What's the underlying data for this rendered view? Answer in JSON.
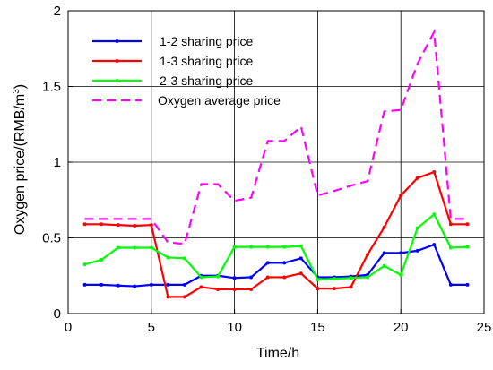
{
  "chart_data": {
    "type": "line",
    "xlabel": "Time/h",
    "ylabel_main": "Oxygen price/(RMB/m",
    "ylabel_sup": "3",
    "ylabel_close": ")",
    "xlim": [
      0,
      25
    ],
    "ylim": [
      0,
      2
    ],
    "x_ticks": [
      0,
      5,
      10,
      15,
      20,
      25
    ],
    "y_ticks": [
      0,
      0.5,
      1,
      1.5,
      2
    ],
    "x_tick_labels": [
      "0",
      "5",
      "10",
      "15",
      "20",
      "25"
    ],
    "y_tick_labels": [
      "0",
      "0.5",
      "1",
      "1.5",
      "2"
    ],
    "grid": true,
    "legend_position": "top-left",
    "x": [
      1,
      2,
      3,
      4,
      5,
      6,
      7,
      8,
      9,
      10,
      11,
      12,
      13,
      14,
      15,
      16,
      17,
      18,
      19,
      20,
      21,
      22,
      23,
      24
    ],
    "series": [
      {
        "name": "1-2 sharing price",
        "color": "#0000ff",
        "dash": "solid",
        "markers": true,
        "values": [
          0.19,
          0.19,
          0.185,
          0.18,
          0.19,
          0.19,
          0.19,
          0.25,
          0.25,
          0.235,
          0.24,
          0.335,
          0.335,
          0.365,
          0.24,
          0.24,
          0.245,
          0.255,
          0.4,
          0.4,
          0.415,
          0.455,
          0.19,
          0.19
        ]
      },
      {
        "name": "1-3 sharing price",
        "color": "#ff0000",
        "dash": "solid",
        "markers": true,
        "values": [
          0.59,
          0.59,
          0.585,
          0.58,
          0.585,
          0.11,
          0.11,
          0.175,
          0.16,
          0.16,
          0.16,
          0.24,
          0.24,
          0.265,
          0.165,
          0.165,
          0.175,
          0.39,
          0.57,
          0.78,
          0.895,
          0.935,
          0.59,
          0.59
        ]
      },
      {
        "name": "2-3 sharing price",
        "color": "#00ff00",
        "dash": "solid",
        "markers": true,
        "values": [
          0.325,
          0.355,
          0.435,
          0.435,
          0.435,
          0.37,
          0.365,
          0.24,
          0.245,
          0.44,
          0.44,
          0.44,
          0.44,
          0.445,
          0.225,
          0.23,
          0.235,
          0.24,
          0.315,
          0.255,
          0.565,
          0.655,
          0.435,
          0.44
        ]
      },
      {
        "name": "Oxygen average price",
        "color": "#ff00ff",
        "dash": "dashed",
        "markers": false,
        "values": [
          0.625,
          0.625,
          0.625,
          0.625,
          0.625,
          0.47,
          0.46,
          0.855,
          0.855,
          0.745,
          0.765,
          1.14,
          1.14,
          1.235,
          0.78,
          0.81,
          0.845,
          0.875,
          1.335,
          1.345,
          1.65,
          1.86,
          0.625,
          0.625
        ]
      }
    ]
  }
}
